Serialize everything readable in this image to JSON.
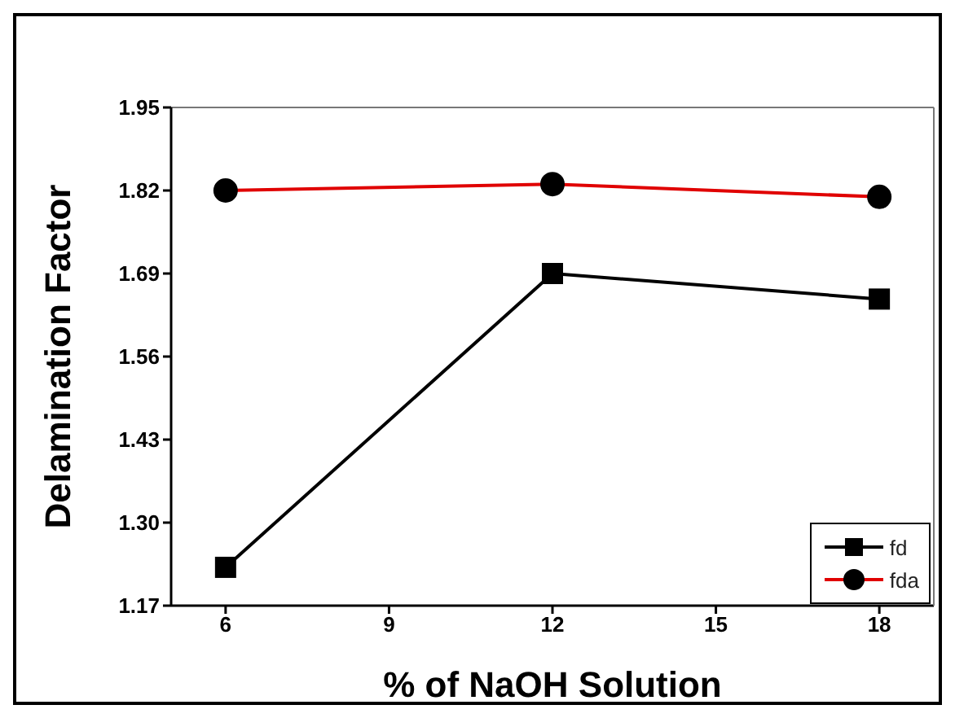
{
  "chart_data": {
    "type": "line",
    "xlabel": "% of NaOH Solution",
    "ylabel": "Delamination Factor",
    "x": [
      6,
      12,
      18
    ],
    "series": [
      {
        "name": "fd",
        "color": "#000000",
        "marker": "square",
        "values": [
          1.23,
          1.69,
          1.65
        ]
      },
      {
        "name": "fda",
        "color": "#e00000",
        "marker": "circle",
        "values": [
          1.82,
          1.83,
          1.81
        ]
      }
    ],
    "xlim": [
      5,
      19
    ],
    "xticks": [
      6,
      9,
      12,
      15,
      18
    ],
    "ylim": [
      1.17,
      1.95
    ],
    "yticks": [
      1.17,
      {
        "value": 1.3,
        "label": "1.30"
      },
      1.43,
      1.56,
      1.69,
      1.82,
      1.95
    ],
    "grid": false,
    "legend": "bottom right",
    "line_style": "solid"
  }
}
